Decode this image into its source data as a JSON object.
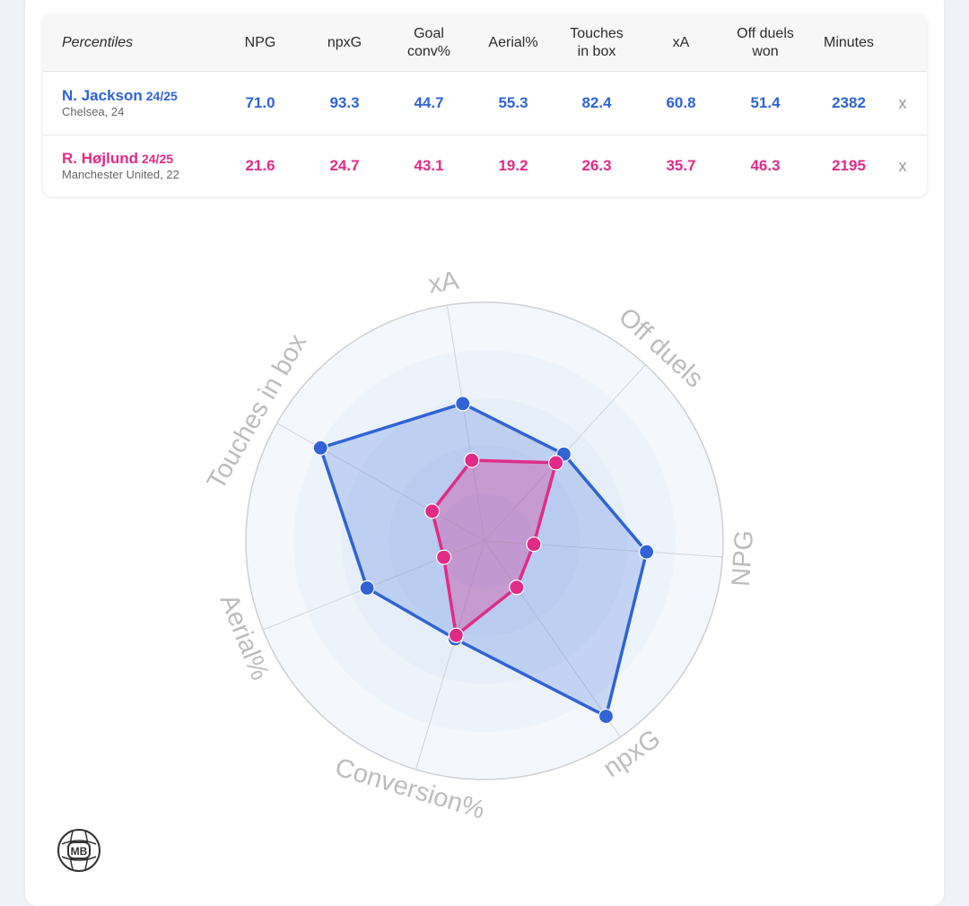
{
  "table": {
    "header_label": "Percentiles",
    "columns": [
      "NPG",
      "npxG",
      "Goal\nconv%",
      "Aerial%",
      "Touches\nin box",
      "xA",
      "Off duels\nwon",
      "Minutes"
    ],
    "remove_label": "x",
    "players": [
      {
        "name": "N. Jackson",
        "season": "24/25",
        "club": "Chelsea, 24",
        "color": "#2f63d6",
        "values": [
          "71.0",
          "93.3",
          "44.7",
          "55.3",
          "82.4",
          "60.8",
          "51.4",
          "2382"
        ]
      },
      {
        "name": "R. Højlund",
        "season": "24/25",
        "club": "Manchester United, 22",
        "color": "#e12b87",
        "values": [
          "21.6",
          "24.7",
          "43.1",
          "19.2",
          "26.3",
          "35.7",
          "46.3",
          "2195"
        ]
      }
    ]
  },
  "chart_data": {
    "type": "radar",
    "axes": [
      "xA",
      "Off duels",
      "NPG",
      "npxG",
      "Conversion%",
      "Aerial%",
      "Touches in box"
    ],
    "range": [
      0,
      100
    ],
    "series": [
      {
        "name": "N. Jackson",
        "color": "#2f63d6",
        "fill": "#2f63d6",
        "values": [
          60.8,
          51.4,
          71.0,
          93.3,
          44.7,
          55.3,
          82.4
        ]
      },
      {
        "name": "R. Højlund",
        "color": "#e12b87",
        "fill": "#e12b87",
        "values": [
          35.7,
          46.3,
          21.6,
          24.7,
          43.1,
          19.2,
          26.3
        ]
      }
    ]
  },
  "logo_text": "MB"
}
